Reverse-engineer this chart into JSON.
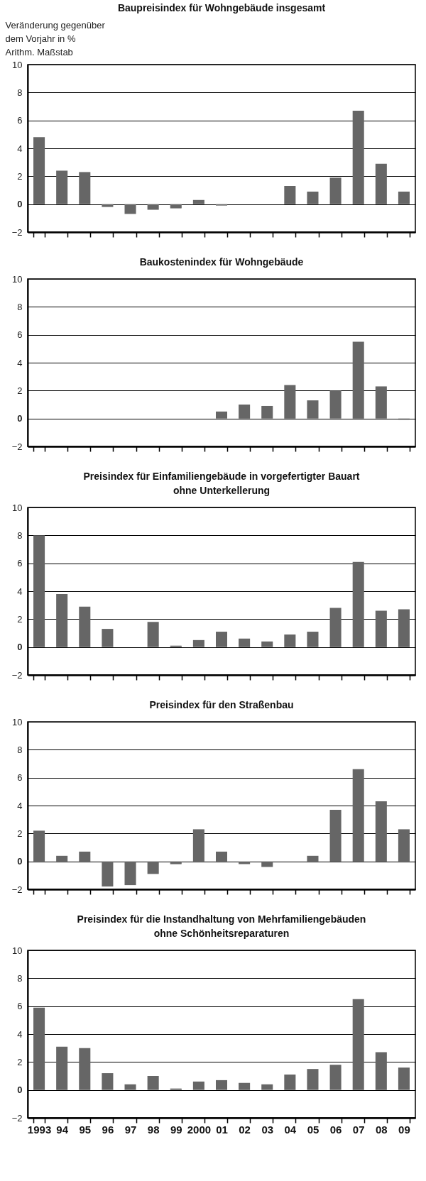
{
  "chart_data": [
    {
      "type": "bar",
      "title": "Baupreisindex für Wohngebäude insgesamt",
      "ylabel": "Veränderung gegenüber dem Vorjahr in %",
      "annotations": [
        "Arithm. Maßstab"
      ],
      "categories": [
        "1993",
        "94",
        "95",
        "96",
        "97",
        "98",
        "99",
        "2000",
        "01",
        "02",
        "03",
        "04",
        "05",
        "06",
        "07",
        "08",
        "09"
      ],
      "values": [
        4.8,
        2.4,
        2.3,
        -0.2,
        -0.7,
        -0.4,
        -0.3,
        0.3,
        -0.1,
        0,
        0,
        1.3,
        0.9,
        1.9,
        6.7,
        2.9,
        0.9
      ],
      "color": "#666666",
      "ylim": [
        -2,
        10
      ],
      "yticks": [
        -2,
        0,
        2,
        4,
        6,
        8,
        10
      ],
      "grid": "y",
      "tick_labels": "y"
    },
    {
      "type": "bar",
      "title": "Baukostenindex für Wohngebäude",
      "categories": [
        "1993",
        "94",
        "95",
        "96",
        "97",
        "98",
        "99",
        "2000",
        "01",
        "02",
        "03",
        "04",
        "05",
        "06",
        "07",
        "08",
        "09"
      ],
      "values": [
        null,
        null,
        null,
        null,
        null,
        null,
        null,
        null,
        0.5,
        1.0,
        0.9,
        2.4,
        1.3,
        2.0,
        5.5,
        2.3,
        -0.1
      ],
      "color": "#666666",
      "ylim": [
        -2,
        10
      ],
      "yticks": [
        -2,
        0,
        2,
        4,
        6,
        8,
        10
      ],
      "grid": "y",
      "tick_labels": "y"
    },
    {
      "type": "bar",
      "title": "Preisindex für Einfamiliengebäude in vorgefertigter Bauart ohne Unterkellerung",
      "categories": [
        "1993",
        "94",
        "95",
        "96",
        "97",
        "98",
        "99",
        "2000",
        "01",
        "02",
        "03",
        "04",
        "05",
        "06",
        "07",
        "08",
        "09"
      ],
      "values": [
        8.0,
        3.8,
        2.9,
        1.3,
        0,
        1.8,
        0.1,
        0.5,
        1.1,
        0.6,
        0.4,
        0.9,
        1.1,
        2.8,
        6.1,
        2.6,
        2.7
      ],
      "color": "#666666",
      "ylim": [
        -2,
        10
      ],
      "yticks": [
        -2,
        0,
        2,
        4,
        6,
        8,
        10
      ],
      "grid": "y",
      "tick_labels": "y"
    },
    {
      "type": "bar",
      "title": "Preisindex für den Straßenbau",
      "categories": [
        "1993",
        "94",
        "95",
        "96",
        "97",
        "98",
        "99",
        "2000",
        "01",
        "02",
        "03",
        "04",
        "05",
        "06",
        "07",
        "08",
        "09"
      ],
      "values": [
        2.2,
        0.4,
        0.7,
        -1.8,
        -1.7,
        -0.9,
        -0.2,
        2.3,
        0.7,
        -0.2,
        -0.4,
        0,
        0.4,
        3.7,
        6.6,
        4.3,
        2.3
      ],
      "color": "#666666",
      "ylim": [
        -2,
        10
      ],
      "yticks": [
        -2,
        0,
        2,
        4,
        6,
        8,
        10
      ],
      "grid": "y",
      "tick_labels": "y"
    },
    {
      "type": "bar",
      "title": "Preisindex für die Instandhaltung von Mehrfamiliengebäuden ohne Schönheitsreparaturen",
      "categories": [
        "1993",
        "94",
        "95",
        "96",
        "97",
        "98",
        "99",
        "2000",
        "01",
        "02",
        "03",
        "04",
        "05",
        "06",
        "07",
        "08",
        "09"
      ],
      "values": [
        5.9,
        3.1,
        3.0,
        1.2,
        0.4,
        1.0,
        0.1,
        0.6,
        0.7,
        0.5,
        0.4,
        1.1,
        1.5,
        1.8,
        6.5,
        2.7,
        1.6
      ],
      "color": "#666666",
      "ylim": [
        -2,
        10
      ],
      "yticks": [
        -2,
        0,
        2,
        4,
        6,
        8,
        10
      ],
      "grid": "y"
    }
  ]
}
